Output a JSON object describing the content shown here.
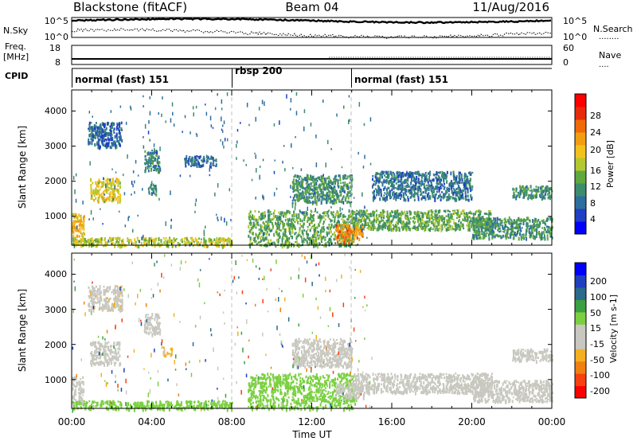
{
  "header": {
    "station": "Blackstone (fitACF)",
    "beam": "Beam 04",
    "date": "11/Aug/2016"
  },
  "meta_labels": {
    "nsky": "N.Sky",
    "nsearch": "N.Search",
    "freq_top": "Freq.",
    "freq_unit": "[MHz]",
    "nave": "Nave",
    "cpid": "CPID",
    "noise_top_left": "10^5",
    "noise_bottom_left": "10^0",
    "noise_top_right": "10^5",
    "noise_bottom_right": "10^0",
    "freq_max": "18",
    "freq_min": "8",
    "nave_max": "60",
    "nave_min": "0",
    "nsearch_dots": "........",
    "nave_dots": "...."
  },
  "cpid_segments": [
    {
      "label": "normal (fast) 151",
      "start_hour": 0
    },
    {
      "label": "rbsp 200",
      "start_hour": 8
    },
    {
      "label": "normal (fast) 151",
      "start_hour": 14
    }
  ],
  "x_axis": {
    "label": "Time UT",
    "ticks": [
      "00:00",
      "04:00",
      "08:00",
      "12:00",
      "16:00",
      "20:00",
      "00:00"
    ]
  },
  "power_panel": {
    "ylabel": "Slant Range [km]",
    "yticks": [
      "1000",
      "2000",
      "3000",
      "4000"
    ],
    "colorbar_label": "Power [dB]",
    "colorbar_ticks": [
      "4",
      "8",
      "12",
      "16",
      "20",
      "24",
      "28"
    ]
  },
  "velocity_panel": {
    "ylabel": "Slant Range [km]",
    "yticks": [
      "1000",
      "2000",
      "3000",
      "4000"
    ],
    "colorbar_label": "Velocity [m s-1]",
    "colorbar_ticks": [
      "200",
      "100",
      "50",
      "15",
      "-15",
      "-50",
      "-100",
      "-200"
    ]
  },
  "chart_data": [
    {
      "type": "heatmap",
      "title": "Power",
      "xlabel": "Time UT",
      "ylabel": "Slant Range [km]",
      "xlim_hours": [
        0,
        24
      ],
      "ylim_km": [
        180,
        4600
      ],
      "zlabel": "Power [dB]",
      "zlim": [
        0,
        32
      ],
      "colors": [
        "#0000ff",
        "#1f3fc4",
        "#2e6e9e",
        "#3c8c6e",
        "#5fa83e",
        "#b4c830",
        "#f2c21b",
        "#f29e10",
        "#f06a08",
        "#e82a0c",
        "#ff0000"
      ],
      "echo_regions": [
        {
          "t_start": 0.0,
          "t_end": 0.6,
          "range_start": 300,
          "range_end": 1100,
          "power": 20
        },
        {
          "t_start": 0.9,
          "t_end": 2.4,
          "range_start": 1450,
          "range_end": 2100,
          "power": 18
        },
        {
          "t_start": 0.8,
          "t_end": 2.5,
          "range_start": 3000,
          "range_end": 3700,
          "power": 6
        },
        {
          "t_start": 3.6,
          "t_end": 4.4,
          "range_start": 2300,
          "range_end": 2900,
          "power": 8
        },
        {
          "t_start": 3.8,
          "t_end": 4.2,
          "range_start": 1650,
          "range_end": 1950,
          "power": 9
        },
        {
          "t_start": 5.6,
          "t_end": 7.2,
          "range_start": 2450,
          "range_end": 2750,
          "power": 6
        },
        {
          "t_start": 0.0,
          "t_end": 8.0,
          "range_start": 180,
          "range_end": 420,
          "power": 16
        },
        {
          "t_start": 8.8,
          "t_end": 14.2,
          "range_start": 180,
          "range_end": 1200,
          "power": 12
        },
        {
          "t_start": 11.0,
          "t_end": 14.0,
          "range_start": 1400,
          "range_end": 2200,
          "power": 10
        },
        {
          "t_start": 13.2,
          "t_end": 14.6,
          "range_start": 300,
          "range_end": 800,
          "power": 24
        },
        {
          "t_start": 14.0,
          "t_end": 21.0,
          "range_start": 650,
          "range_end": 1200,
          "power": 12
        },
        {
          "t_start": 15.0,
          "t_end": 20.0,
          "range_start": 1500,
          "range_end": 2300,
          "power": 7
        },
        {
          "t_start": 20.0,
          "t_end": 24.0,
          "range_start": 400,
          "range_end": 1000,
          "power": 10
        },
        {
          "t_start": 22.0,
          "t_end": 24.0,
          "range_start": 1550,
          "range_end": 1900,
          "power": 10
        }
      ]
    },
    {
      "type": "heatmap",
      "title": "Velocity",
      "xlabel": "Time UT",
      "ylabel": "Slant Range [km]",
      "xlim_hours": [
        0,
        24
      ],
      "ylim_km": [
        180,
        4600
      ],
      "zlabel": "Velocity [m s-1]",
      "zlim": [
        -240,
        240
      ],
      "ground_scatter_color": "#c8c8c0",
      "colors": [
        "#ff0000",
        "#f84010",
        "#f08010",
        "#f4b020",
        "#c8c8c0",
        "#c8c8c0",
        "#7ad040",
        "#3aa040",
        "#2a6a8a",
        "#2040c0",
        "#0000ff"
      ],
      "echo_regions": [
        {
          "t_start": 0.0,
          "t_end": 0.6,
          "range_start": 300,
          "range_end": 1100,
          "velocity": 0
        },
        {
          "t_start": 0.9,
          "t_end": 2.4,
          "range_start": 1450,
          "range_end": 2100,
          "velocity": 0
        },
        {
          "t_start": 0.8,
          "t_end": 2.5,
          "range_start": 3000,
          "range_end": 3700,
          "velocity": -60
        },
        {
          "t_start": 3.6,
          "t_end": 4.4,
          "range_start": 2300,
          "range_end": 2900,
          "velocity": -40
        },
        {
          "t_start": 4.5,
          "t_end": 5.0,
          "range_start": 1700,
          "range_end": 1950,
          "velocity": -80
        },
        {
          "t_start": 0.0,
          "t_end": 8.0,
          "range_start": 180,
          "range_end": 420,
          "velocity": 40
        },
        {
          "t_start": 8.8,
          "t_end": 14.2,
          "range_start": 180,
          "range_end": 1200,
          "velocity": 40
        },
        {
          "t_start": 11.0,
          "t_end": 14.0,
          "range_start": 1400,
          "range_end": 2200,
          "velocity": 0
        },
        {
          "t_start": 13.2,
          "t_end": 14.6,
          "range_start": 500,
          "range_end": 900,
          "velocity": 0
        },
        {
          "t_start": 14.0,
          "t_end": 21.0,
          "range_start": 650,
          "range_end": 1200,
          "velocity": 0
        },
        {
          "t_start": 20.0,
          "t_end": 24.0,
          "range_start": 400,
          "range_end": 1000,
          "velocity": 0
        },
        {
          "t_start": 22.0,
          "t_end": 24.0,
          "range_start": 1550,
          "range_end": 1900,
          "velocity": 0
        }
      ]
    }
  ]
}
